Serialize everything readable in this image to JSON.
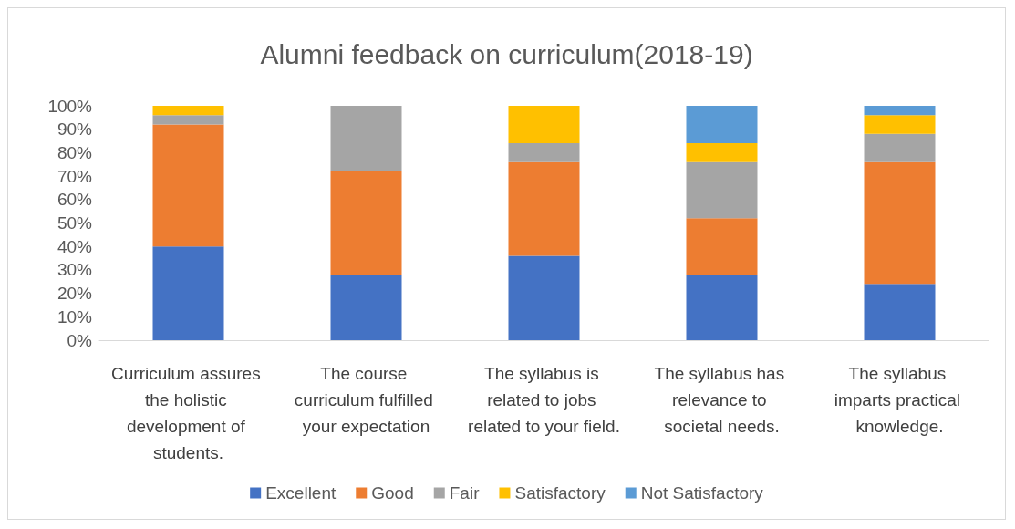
{
  "chart_data": {
    "type": "bar",
    "title": "Alumni feedback on curriculum(2018-19)",
    "stacked": true,
    "categories": [
      "Curriculum assures the holistic development of students.",
      "The course curriculum fulfilled your expectation",
      "The syllabus is related to jobs related to your field.",
      "The syllabus has relevance to societal needs.",
      "The syllabus imparts practical knowledge."
    ],
    "series": [
      {
        "name": "Excellent",
        "color": "#4472c4",
        "values": [
          40,
          28,
          36,
          28,
          24
        ]
      },
      {
        "name": "Good",
        "color": "#ed7d31",
        "values": [
          52,
          44,
          40,
          24,
          52
        ]
      },
      {
        "name": "Fair",
        "color": "#a5a5a5",
        "values": [
          4,
          28,
          8,
          24,
          12
        ]
      },
      {
        "name": "Satisfactory",
        "color": "#ffc000",
        "values": [
          4,
          0,
          16,
          8,
          8
        ]
      },
      {
        "name": "Not Satisfactory",
        "color": "#5b9bd5",
        "values": [
          0,
          0,
          0,
          16,
          4
        ]
      }
    ],
    "ylim": [
      0,
      100
    ],
    "yticks": [
      {
        "value": 0,
        "label": "0%"
      },
      {
        "value": 10,
        "label": "10%"
      },
      {
        "value": 20,
        "label": "20%"
      },
      {
        "value": 30,
        "label": "30%"
      },
      {
        "value": 40,
        "label": "40%"
      },
      {
        "value": 50,
        "label": "50%"
      },
      {
        "value": 60,
        "label": "60%"
      },
      {
        "value": 70,
        "label": "70%"
      },
      {
        "value": 80,
        "label": "80%"
      },
      {
        "value": 90,
        "label": "90%"
      },
      {
        "value": 100,
        "label": "100%"
      }
    ],
    "grid": false,
    "legend": "bottom"
  }
}
